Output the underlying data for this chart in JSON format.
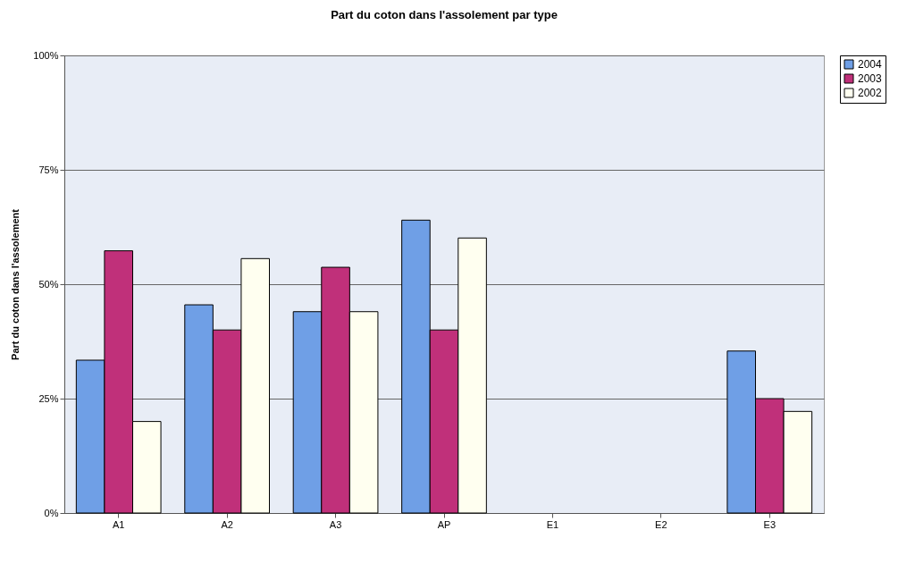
{
  "chart_data": {
    "type": "bar",
    "title": "Part du coton dans l'assolement par type",
    "ylabel": "Part du coton dans l'assolement",
    "categories": [
      "A1",
      "A2",
      "A3",
      "AP",
      "E1",
      "E2",
      "E3"
    ],
    "series": [
      {
        "name": "2004",
        "color": "#6f9fe6",
        "values": [
          33.4,
          45.5,
          44.0,
          64.0,
          null,
          null,
          35.4
        ]
      },
      {
        "name": "2003",
        "color": "#c0307a",
        "values": [
          57.3,
          40.0,
          53.7,
          40.0,
          null,
          null,
          25.0
        ]
      },
      {
        "name": "2002",
        "color": "#fffff0",
        "values": [
          20.0,
          55.6,
          44.0,
          60.1,
          null,
          null,
          22.2
        ]
      }
    ],
    "ylim": [
      0,
      100
    ],
    "yticks": [
      {
        "value": 0,
        "label": "0%"
      },
      {
        "value": 25,
        "label": "25%"
      },
      {
        "value": 50,
        "label": "50%"
      },
      {
        "value": 75,
        "label": "75%"
      },
      {
        "value": 100,
        "label": "100%"
      }
    ],
    "grid": "y",
    "legend": "right"
  }
}
